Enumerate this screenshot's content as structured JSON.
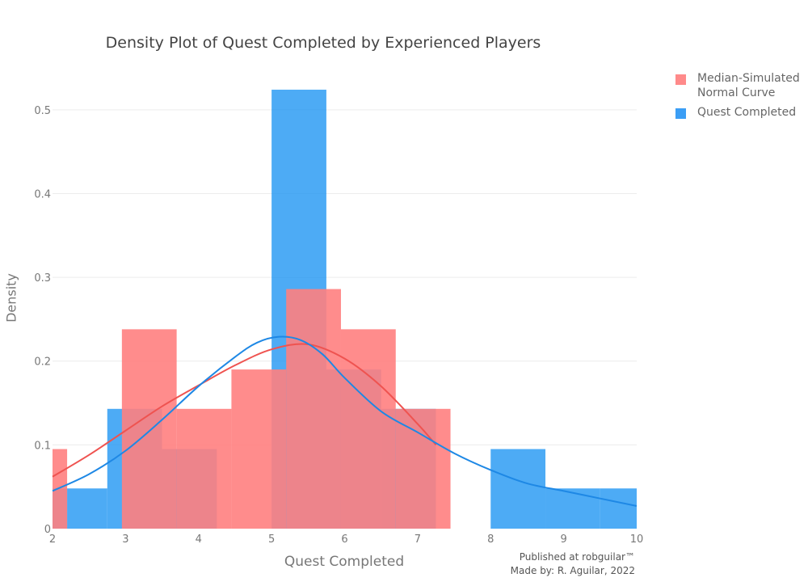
{
  "chart_data": {
    "type": "histogram",
    "title": "Density Plot of Quest Completed by Experienced Players",
    "xlabel": "Quest Completed",
    "ylabel": "Density",
    "xlim": [
      2,
      10
    ],
    "ylim": [
      0,
      0.55
    ],
    "x_ticks": [
      "2",
      "3",
      "4",
      "5",
      "6",
      "7",
      "8",
      "9",
      "10"
    ],
    "y_ticks": [
      "0",
      "0.1",
      "0.2",
      "0.3",
      "0.4",
      "0.5"
    ],
    "grid": true,
    "legend_position": "top-right",
    "series": [
      {
        "name": "Median-Simulated\n Normal Curve",
        "color": "#ff7f7f",
        "opacity": 0.9,
        "bins": [
          {
            "x0": 2.0,
            "x1": 2.2,
            "y": 0.095
          },
          {
            "x0": 2.95,
            "x1": 3.7,
            "y": 0.238
          },
          {
            "x0": 3.7,
            "x1": 4.45,
            "y": 0.143
          },
          {
            "x0": 4.45,
            "x1": 5.2,
            "y": 0.19
          },
          {
            "x0": 5.2,
            "x1": 5.95,
            "y": 0.286
          },
          {
            "x0": 5.95,
            "x1": 6.7,
            "y": 0.238
          },
          {
            "x0": 6.7,
            "x1": 7.45,
            "y": 0.143
          }
        ],
        "curve": {
          "color": "#ef5350",
          "x": [
            2.0,
            2.5,
            3.0,
            3.5,
            4.0,
            4.5,
            5.0,
            5.5,
            6.0,
            6.5,
            7.0,
            7.25
          ],
          "y": [
            0.062,
            0.088,
            0.117,
            0.146,
            0.171,
            0.195,
            0.214,
            0.22,
            0.203,
            0.17,
            0.125,
            0.1
          ]
        }
      },
      {
        "name": "Quest Completed",
        "color": "#2196f3",
        "opacity": 0.8,
        "bins": [
          {
            "x0": 2.0,
            "x1": 2.2,
            "y": 0.048
          },
          {
            "x0": 2.2,
            "x1": 2.75,
            "y": 0.048
          },
          {
            "x0": 2.75,
            "x1": 3.5,
            "y": 0.143
          },
          {
            "x0": 3.5,
            "x1": 4.25,
            "y": 0.095
          },
          {
            "x0": 4.25,
            "x1": 5.0,
            "y": 0.0
          },
          {
            "x0": 5.0,
            "x1": 5.75,
            "y": 0.524
          },
          {
            "x0": 5.75,
            "x1": 6.5,
            "y": 0.19
          },
          {
            "x0": 6.5,
            "x1": 7.25,
            "y": 0.143
          },
          {
            "x0": 7.25,
            "x1": 8.0,
            "y": 0.0
          },
          {
            "x0": 8.0,
            "x1": 8.75,
            "y": 0.095
          },
          {
            "x0": 8.75,
            "x1": 9.5,
            "y": 0.048
          },
          {
            "x0": 9.5,
            "x1": 10.0,
            "y": 0.048
          }
        ],
        "curve": {
          "color": "#1e88e5",
          "x": [
            2.0,
            2.5,
            3.0,
            3.5,
            4.0,
            4.5,
            4.8,
            5.1,
            5.4,
            5.7,
            6.0,
            6.5,
            7.0,
            7.5,
            8.0,
            8.5,
            9.0,
            9.5,
            10.0
          ],
          "y": [
            0.045,
            0.065,
            0.093,
            0.13,
            0.17,
            0.205,
            0.222,
            0.229,
            0.225,
            0.208,
            0.18,
            0.14,
            0.115,
            0.09,
            0.07,
            0.054,
            0.045,
            0.036,
            0.027
          ]
        }
      }
    ]
  },
  "annotation": {
    "line1": "Published at robguilar™",
    "line2": "Made by:  R. Aguilar, 2022"
  }
}
